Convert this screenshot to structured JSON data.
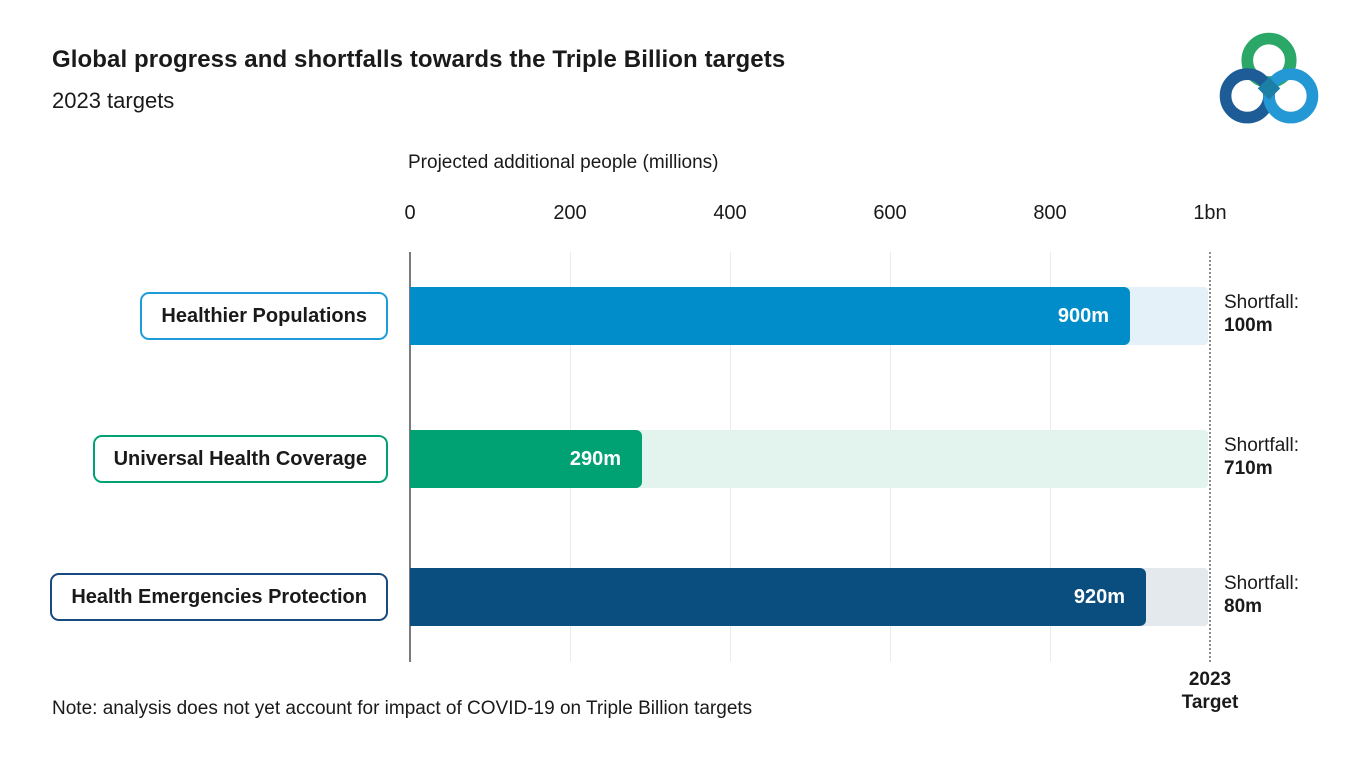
{
  "header": {
    "title": "Global progress and shortfalls towards the Triple Billion targets",
    "subtitle": "2023 targets"
  },
  "logo": {
    "description": "WHO Triple Billion interlocking rings logo",
    "ring_colors": {
      "top": "#2BA768",
      "left": "#1D5C96",
      "right": "#2498D5",
      "center": "#1B7FA6"
    }
  },
  "chart_data": {
    "type": "bar",
    "orientation": "horizontal",
    "axis_title": "Projected additional people (millions)",
    "x_ticks": [
      "0",
      "200",
      "400",
      "600",
      "800",
      "1bn"
    ],
    "xlim": [
      0,
      1000
    ],
    "grid": true,
    "target": {
      "value": 1000,
      "label_line1": "2023",
      "label_line2": "Target"
    },
    "shortfall_heading": "Shortfall:",
    "categories": [
      "Healthier Populations",
      "Universal Health Coverage",
      "Health Emergencies Protection"
    ],
    "values": [
      900,
      290,
      920
    ],
    "rows": [
      {
        "category": "Healthier Populations",
        "value": 900,
        "value_label": "900m",
        "shortfall_title": "Shortfall:",
        "shortfall_value": "100m",
        "bar_color": "#008DC9",
        "track_color": "#E4F1F9",
        "box_border_color": "#1E9CD9"
      },
      {
        "category": "Universal Health Coverage",
        "value": 290,
        "value_label": "290m",
        "shortfall_title": "Shortfall:",
        "shortfall_value": "710m",
        "bar_color": "#00A173",
        "track_color": "#E3F4EE",
        "box_border_color": "#00A173"
      },
      {
        "category": "Health Emergencies Protection",
        "value": 920,
        "value_label": "920m",
        "shortfall_title": "Shortfall:",
        "shortfall_value": "80m",
        "bar_color": "#0A4D7F",
        "track_color": "#E4E9ED",
        "box_border_color": "#16497D"
      }
    ],
    "colors": {
      "axis_line": "#7B7B7B",
      "gridline": "#ECECEC",
      "target_line": "#8C8C8C",
      "text": "#1A1A1A"
    }
  },
  "footer": {
    "note": "Note: analysis does not yet account for impact of COVID-19 on Triple Billion targets"
  }
}
